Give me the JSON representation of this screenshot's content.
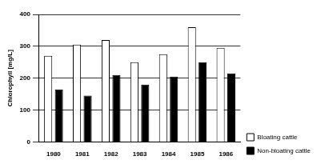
{
  "chart_data": {
    "type": "bar",
    "y_label": "Chlorophyll [mg/L]",
    "categories": [
      "1980",
      "1981",
      "1982",
      "1983",
      "1984",
      "1985",
      "1986"
    ],
    "series": [
      {
        "name": "Bloating cattle",
        "color": "#ffffff",
        "values": [
          270,
          305,
          320,
          250,
          275,
          360,
          295
        ]
      },
      {
        "name": "Non-bloating cattle",
        "color": "#000000",
        "values": [
          165,
          145,
          210,
          180,
          205,
          250,
          215
        ]
      }
    ],
    "ylim": [
      0,
      400
    ],
    "yticks": [
      0,
      100,
      200,
      300,
      400
    ],
    "grid": true,
    "legend": "right"
  }
}
